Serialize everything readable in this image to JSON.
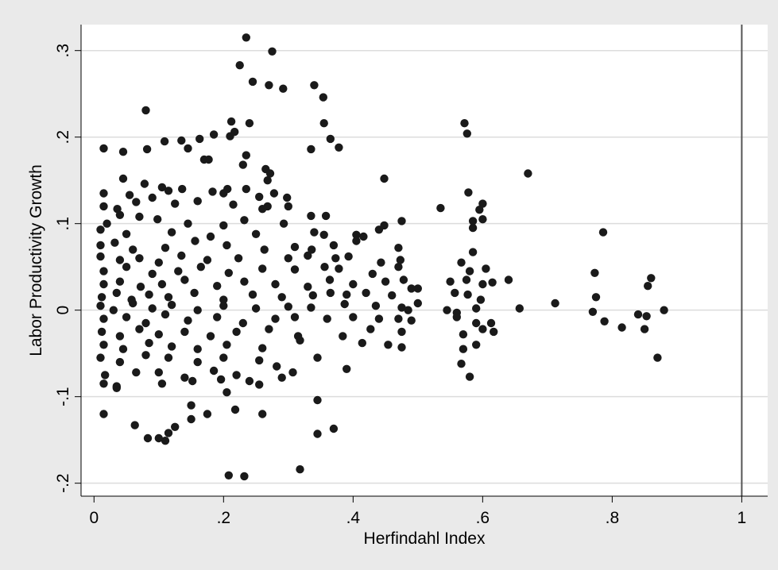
{
  "chart_data": {
    "type": "scatter",
    "xlabel": "Herfindahl Index",
    "ylabel": "Labor Productivity Growth",
    "xlim": [
      -0.02,
      1.04
    ],
    "ylim": [
      -0.215,
      0.33
    ],
    "x_ticks": [
      0,
      0.2,
      0.4,
      0.6,
      0.8,
      1
    ],
    "x_tick_labels": [
      "0",
      ".2",
      ".4",
      ".6",
      ".8",
      "1"
    ],
    "y_ticks": [
      -0.2,
      -0.1,
      0,
      0.1,
      0.2,
      0.3
    ],
    "y_tick_labels": [
      "-.2",
      "-.1",
      "0",
      ".1",
      ".2",
      ".3"
    ],
    "grid": "horizontal",
    "reference_line_x": 1.0,
    "colors": {
      "marker": "#1a1a1a",
      "plot_bg": "#ffffff",
      "frame_bg": "#eaeaea",
      "grid": "#dcdcdc",
      "axis": "#000000",
      "ref_line": "#555555"
    },
    "points": [
      [
        0.235,
        0.315
      ],
      [
        0.275,
        0.299
      ],
      [
        0.225,
        0.283
      ],
      [
        0.245,
        0.264
      ],
      [
        0.27,
        0.26
      ],
      [
        0.292,
        0.256
      ],
      [
        0.34,
        0.26
      ],
      [
        0.354,
        0.246
      ],
      [
        0.08,
        0.231
      ],
      [
        0.212,
        0.218
      ],
      [
        0.24,
        0.216
      ],
      [
        0.355,
        0.216
      ],
      [
        0.572,
        0.216
      ],
      [
        0.217,
        0.206
      ],
      [
        0.576,
        0.204
      ],
      [
        0.365,
        0.198
      ],
      [
        0.378,
        0.188
      ],
      [
        0.015,
        0.187
      ],
      [
        0.082,
        0.186
      ],
      [
        0.045,
        0.183
      ],
      [
        0.335,
        0.186
      ],
      [
        0.109,
        0.195
      ],
      [
        0.135,
        0.196
      ],
      [
        0.163,
        0.198
      ],
      [
        0.185,
        0.203
      ],
      [
        0.21,
        0.201
      ],
      [
        0.145,
        0.187
      ],
      [
        0.235,
        0.179
      ],
      [
        0.17,
        0.174
      ],
      [
        0.177,
        0.174
      ],
      [
        0.23,
        0.168
      ],
      [
        0.265,
        0.163
      ],
      [
        0.272,
        0.158
      ],
      [
        0.268,
        0.15
      ],
      [
        0.045,
        0.152
      ],
      [
        0.078,
        0.146
      ],
      [
        0.105,
        0.142
      ],
      [
        0.115,
        0.138
      ],
      [
        0.136,
        0.14
      ],
      [
        0.2,
        0.135
      ],
      [
        0.235,
        0.14
      ],
      [
        0.278,
        0.135
      ],
      [
        0.448,
        0.152
      ],
      [
        0.67,
        0.158
      ],
      [
        0.015,
        0.135
      ],
      [
        0.055,
        0.133
      ],
      [
        0.09,
        0.13
      ],
      [
        0.16,
        0.126
      ],
      [
        0.183,
        0.137
      ],
      [
        0.206,
        0.14
      ],
      [
        0.255,
        0.131
      ],
      [
        0.298,
        0.13
      ],
      [
        0.578,
        0.136
      ],
      [
        0.015,
        0.12
      ],
      [
        0.036,
        0.117
      ],
      [
        0.065,
        0.125
      ],
      [
        0.125,
        0.123
      ],
      [
        0.215,
        0.122
      ],
      [
        0.26,
        0.117
      ],
      [
        0.268,
        0.12
      ],
      [
        0.3,
        0.12
      ],
      [
        0.535,
        0.118
      ],
      [
        0.6,
        0.123
      ],
      [
        0.595,
        0.116
      ],
      [
        0.02,
        0.1
      ],
      [
        0.04,
        0.11
      ],
      [
        0.07,
        0.108
      ],
      [
        0.098,
        0.105
      ],
      [
        0.145,
        0.1
      ],
      [
        0.2,
        0.098
      ],
      [
        0.232,
        0.104
      ],
      [
        0.293,
        0.1
      ],
      [
        0.335,
        0.109
      ],
      [
        0.358,
        0.109
      ],
      [
        0.475,
        0.103
      ],
      [
        0.585,
        0.103
      ],
      [
        0.6,
        0.105
      ],
      [
        0.01,
        0.093
      ],
      [
        0.05,
        0.088
      ],
      [
        0.12,
        0.09
      ],
      [
        0.18,
        0.085
      ],
      [
        0.25,
        0.088
      ],
      [
        0.34,
        0.09
      ],
      [
        0.355,
        0.087
      ],
      [
        0.405,
        0.087
      ],
      [
        0.416,
        0.085
      ],
      [
        0.44,
        0.093
      ],
      [
        0.448,
        0.098
      ],
      [
        0.585,
        0.095
      ],
      [
        0.786,
        0.09
      ],
      [
        0.01,
        0.075
      ],
      [
        0.032,
        0.078
      ],
      [
        0.06,
        0.07
      ],
      [
        0.11,
        0.072
      ],
      [
        0.156,
        0.08
      ],
      [
        0.205,
        0.075
      ],
      [
        0.263,
        0.07
      ],
      [
        0.31,
        0.073
      ],
      [
        0.336,
        0.07
      ],
      [
        0.37,
        0.075
      ],
      [
        0.405,
        0.08
      ],
      [
        0.47,
        0.072
      ],
      [
        0.01,
        0.062
      ],
      [
        0.04,
        0.058
      ],
      [
        0.07,
        0.06
      ],
      [
        0.1,
        0.055
      ],
      [
        0.135,
        0.063
      ],
      [
        0.175,
        0.058
      ],
      [
        0.223,
        0.06
      ],
      [
        0.3,
        0.06
      ],
      [
        0.33,
        0.063
      ],
      [
        0.373,
        0.06
      ],
      [
        0.393,
        0.062
      ],
      [
        0.443,
        0.055
      ],
      [
        0.473,
        0.058
      ],
      [
        0.585,
        0.067
      ],
      [
        0.015,
        0.045
      ],
      [
        0.05,
        0.05
      ],
      [
        0.09,
        0.042
      ],
      [
        0.13,
        0.045
      ],
      [
        0.165,
        0.05
      ],
      [
        0.208,
        0.043
      ],
      [
        0.26,
        0.048
      ],
      [
        0.31,
        0.047
      ],
      [
        0.356,
        0.05
      ],
      [
        0.378,
        0.048
      ],
      [
        0.43,
        0.042
      ],
      [
        0.47,
        0.05
      ],
      [
        0.567,
        0.055
      ],
      [
        0.58,
        0.045
      ],
      [
        0.605,
        0.048
      ],
      [
        0.773,
        0.043
      ],
      [
        0.015,
        0.03
      ],
      [
        0.04,
        0.033
      ],
      [
        0.072,
        0.027
      ],
      [
        0.105,
        0.03
      ],
      [
        0.14,
        0.035
      ],
      [
        0.19,
        0.028
      ],
      [
        0.232,
        0.033
      ],
      [
        0.28,
        0.03
      ],
      [
        0.33,
        0.027
      ],
      [
        0.364,
        0.035
      ],
      [
        0.4,
        0.03
      ],
      [
        0.45,
        0.033
      ],
      [
        0.478,
        0.035
      ],
      [
        0.55,
        0.033
      ],
      [
        0.575,
        0.035
      ],
      [
        0.6,
        0.03
      ],
      [
        0.615,
        0.032
      ],
      [
        0.64,
        0.035
      ],
      [
        0.86,
        0.037
      ],
      [
        0.855,
        0.028
      ],
      [
        0.012,
        0.015
      ],
      [
        0.035,
        0.02
      ],
      [
        0.058,
        0.012
      ],
      [
        0.085,
        0.018
      ],
      [
        0.115,
        0.015
      ],
      [
        0.155,
        0.02
      ],
      [
        0.2,
        0.012
      ],
      [
        0.245,
        0.018
      ],
      [
        0.29,
        0.015
      ],
      [
        0.338,
        0.017
      ],
      [
        0.365,
        0.02
      ],
      [
        0.39,
        0.018
      ],
      [
        0.42,
        0.02
      ],
      [
        0.46,
        0.017
      ],
      [
        0.49,
        0.025
      ],
      [
        0.5,
        0.025
      ],
      [
        0.557,
        0.02
      ],
      [
        0.577,
        0.018
      ],
      [
        0.597,
        0.012
      ],
      [
        0.775,
        0.015
      ],
      [
        0.01,
        0.005
      ],
      [
        0.03,
        0.0
      ],
      [
        0.06,
        0.008
      ],
      [
        0.09,
        0.002
      ],
      [
        0.12,
        0.006
      ],
      [
        0.16,
        0.0
      ],
      [
        0.2,
        0.005
      ],
      [
        0.25,
        0.002
      ],
      [
        0.3,
        0.004
      ],
      [
        0.335,
        0.003
      ],
      [
        0.387,
        0.007
      ],
      [
        0.435,
        0.005
      ],
      [
        0.475,
        0.003
      ],
      [
        0.485,
        0.0
      ],
      [
        0.5,
        0.008
      ],
      [
        0.545,
        0.0
      ],
      [
        0.56,
        -0.003
      ],
      [
        0.59,
        0.002
      ],
      [
        0.657,
        0.002
      ],
      [
        0.712,
        0.008
      ],
      [
        0.77,
        -0.002
      ],
      [
        0.84,
        -0.005
      ],
      [
        0.853,
        -0.007
      ],
      [
        0.88,
        0.0
      ],
      [
        0.015,
        -0.01
      ],
      [
        0.05,
        -0.008
      ],
      [
        0.08,
        -0.015
      ],
      [
        0.11,
        -0.005
      ],
      [
        0.145,
        -0.012
      ],
      [
        0.19,
        -0.008
      ],
      [
        0.23,
        -0.015
      ],
      [
        0.28,
        -0.01
      ],
      [
        0.31,
        -0.008
      ],
      [
        0.36,
        -0.01
      ],
      [
        0.4,
        -0.008
      ],
      [
        0.44,
        -0.01
      ],
      [
        0.47,
        -0.01
      ],
      [
        0.49,
        -0.012
      ],
      [
        0.56,
        -0.008
      ],
      [
        0.59,
        -0.015
      ],
      [
        0.613,
        -0.015
      ],
      [
        0.788,
        -0.013
      ],
      [
        0.815,
        -0.02
      ],
      [
        0.85,
        -0.022
      ],
      [
        0.012,
        -0.025
      ],
      [
        0.04,
        -0.03
      ],
      [
        0.07,
        -0.022
      ],
      [
        0.1,
        -0.028
      ],
      [
        0.14,
        -0.025
      ],
      [
        0.18,
        -0.03
      ],
      [
        0.22,
        -0.025
      ],
      [
        0.27,
        -0.022
      ],
      [
        0.315,
        -0.03
      ],
      [
        0.384,
        -0.03
      ],
      [
        0.427,
        -0.022
      ],
      [
        0.475,
        -0.025
      ],
      [
        0.57,
        -0.028
      ],
      [
        0.6,
        -0.022
      ],
      [
        0.617,
        -0.025
      ],
      [
        0.59,
        -0.04
      ],
      [
        0.015,
        -0.04
      ],
      [
        0.045,
        -0.045
      ],
      [
        0.085,
        -0.038
      ],
      [
        0.12,
        -0.042
      ],
      [
        0.16,
        -0.045
      ],
      [
        0.205,
        -0.04
      ],
      [
        0.26,
        -0.044
      ],
      [
        0.318,
        -0.035
      ],
      [
        0.414,
        -0.038
      ],
      [
        0.454,
        -0.04
      ],
      [
        0.475,
        -0.043
      ],
      [
        0.57,
        -0.045
      ],
      [
        0.01,
        -0.055
      ],
      [
        0.04,
        -0.06
      ],
      [
        0.08,
        -0.052
      ],
      [
        0.115,
        -0.055
      ],
      [
        0.16,
        -0.06
      ],
      [
        0.2,
        -0.055
      ],
      [
        0.255,
        -0.058
      ],
      [
        0.345,
        -0.055
      ],
      [
        0.567,
        -0.062
      ],
      [
        0.87,
        -0.055
      ],
      [
        0.017,
        -0.075
      ],
      [
        0.065,
        -0.072
      ],
      [
        0.1,
        -0.072
      ],
      [
        0.14,
        -0.078
      ],
      [
        0.185,
        -0.07
      ],
      [
        0.22,
        -0.075
      ],
      [
        0.282,
        -0.065
      ],
      [
        0.307,
        -0.072
      ],
      [
        0.39,
        -0.068
      ],
      [
        0.58,
        -0.077
      ],
      [
        0.015,
        -0.085
      ],
      [
        0.035,
        -0.088
      ],
      [
        0.105,
        -0.085
      ],
      [
        0.152,
        -0.082
      ],
      [
        0.196,
        -0.08
      ],
      [
        0.24,
        -0.082
      ],
      [
        0.255,
        -0.086
      ],
      [
        0.29,
        -0.078
      ],
      [
        0.035,
        -0.09
      ],
      [
        0.205,
        -0.095
      ],
      [
        0.345,
        -0.104
      ],
      [
        0.15,
        -0.11
      ],
      [
        0.218,
        -0.115
      ],
      [
        0.015,
        -0.12
      ],
      [
        0.175,
        -0.12
      ],
      [
        0.26,
        -0.12
      ],
      [
        0.063,
        -0.133
      ],
      [
        0.15,
        -0.126
      ],
      [
        0.125,
        -0.135
      ],
      [
        0.115,
        -0.142
      ],
      [
        0.37,
        -0.137
      ],
      [
        0.345,
        -0.143
      ],
      [
        0.083,
        -0.148
      ],
      [
        0.1,
        -0.148
      ],
      [
        0.11,
        -0.151
      ],
      [
        0.318,
        -0.184
      ],
      [
        0.208,
        -0.191
      ],
      [
        0.232,
        -0.192
      ]
    ]
  }
}
